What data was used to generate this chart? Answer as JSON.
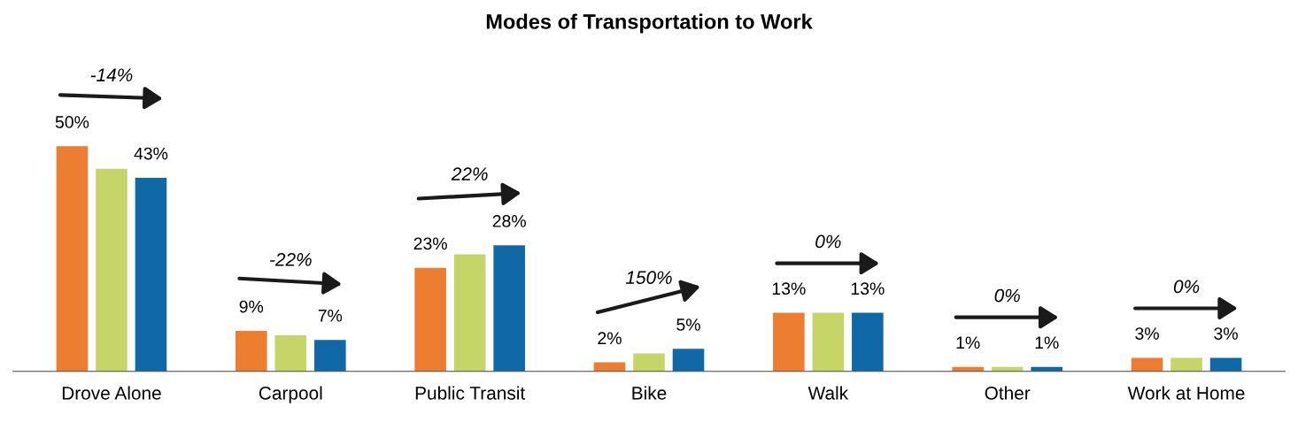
{
  "chart_data": {
    "type": "bar",
    "title": "Modes of Transportation to Work",
    "categories": [
      "Drove Alone",
      "Carpool",
      "Public Transit",
      "Bike",
      "Walk",
      "Other",
      "Work at Home"
    ],
    "series": [
      {
        "color": "#ed7d31",
        "values": [
          50,
          9,
          23,
          2,
          13,
          1,
          3
        ],
        "value_labels": [
          "50%",
          "9%",
          "23%",
          "2%",
          "13%",
          "1%",
          "3%"
        ]
      },
      {
        "color": "#c5d568",
        "values": [
          45,
          8,
          26,
          4,
          13,
          1,
          3
        ]
      },
      {
        "color": "#1069a6",
        "values": [
          43,
          7,
          28,
          5,
          13,
          1,
          3
        ],
        "value_labels": [
          "43%",
          "7%",
          "28%",
          "5%",
          "13%",
          "1%",
          "3%"
        ]
      }
    ],
    "annotations": [
      "-14%",
      "-22%",
      "22%",
      "150%",
      "0%",
      "0%",
      "0%"
    ],
    "grid": false
  }
}
